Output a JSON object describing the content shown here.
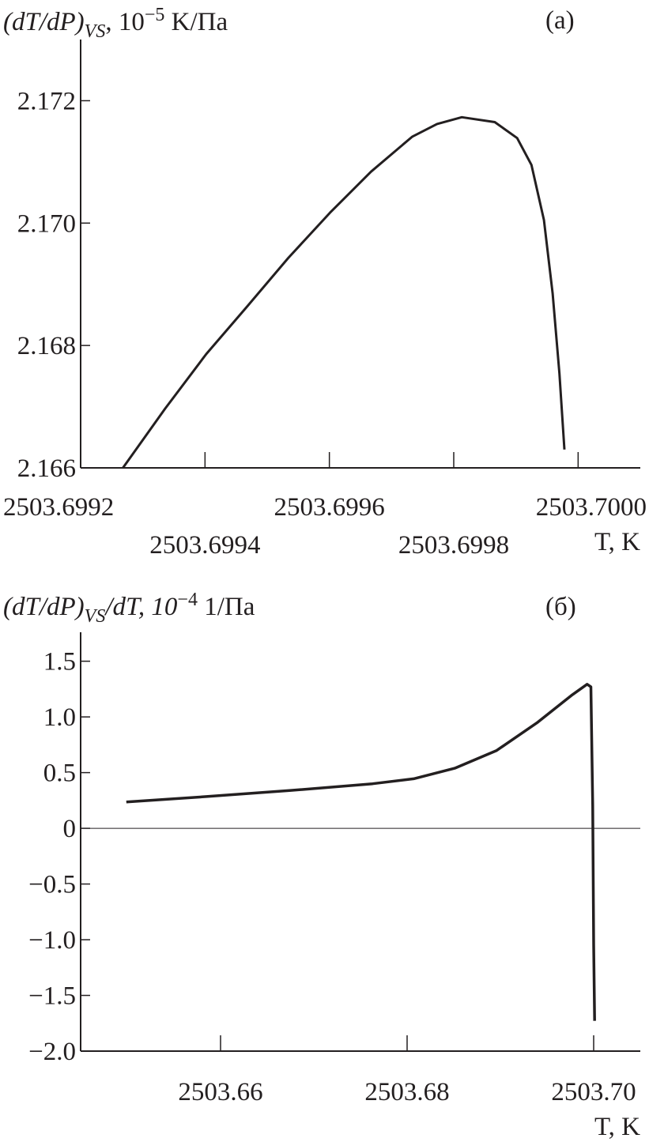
{
  "chart_data": [
    {
      "type": "line",
      "panel_label": "(a)",
      "ylabel": "(dT/dP)VS, 10−5 K/Па",
      "ylabel_parts": {
        "main": "(dT/dP)",
        "sub": "VS",
        "rest": ", 10",
        "exp": "−5",
        "unit": " K/Па"
      },
      "xlabel": "T, K",
      "xlabel_parts": {
        "var": "T",
        "unit": ", K"
      },
      "xlim": [
        2503.6992,
        2503.7001
      ],
      "ylim": [
        2.166,
        2.173
      ],
      "xticks": [
        2503.6992,
        2503.6994,
        2503.6996,
        2503.6998,
        2503.7
      ],
      "xtick_labels": [
        "2503.6992",
        "2503.6994",
        "2503.6996",
        "2503.6998",
        "2503.7000"
      ],
      "yticks": [
        2.166,
        2.168,
        2.17,
        2.172
      ],
      "ytick_labels": [
        "2.166",
        "2.168",
        "2.170",
        "2.172"
      ],
      "grid": false,
      "line_color": "#231f20",
      "x": [
        2503.699268,
        2503.699336,
        2503.699402,
        2503.699468,
        2503.699534,
        2503.699601,
        2503.699667,
        2503.699733,
        2503.699773,
        2503.699813,
        2503.699866,
        2503.699902,
        2503.699925,
        2503.699945,
        2503.699959,
        2503.69997,
        2503.699978
      ],
      "y": [
        2.166,
        2.16697,
        2.16786,
        2.16864,
        2.16943,
        2.17017,
        2.17084,
        2.17141,
        2.17162,
        2.17173,
        2.17165,
        2.17139,
        2.17095,
        2.17005,
        2.16885,
        2.16754,
        2.1663
      ]
    },
    {
      "type": "line",
      "panel_label": "(б)",
      "ylabel": "(dT/dP)VS/dT, 10−4 1/Па",
      "ylabel_parts": {
        "main": "(dT/dP)",
        "sub": "VS",
        "rest": "/dT, 10",
        "exp": "−4",
        "unit": " 1/Па"
      },
      "xlabel": "T, K",
      "xlabel_parts": {
        "var": "T",
        "unit": ", K"
      },
      "xlim": [
        2503.645,
        2503.705
      ],
      "ylim": [
        -2.0,
        1.76
      ],
      "xticks": [
        2503.66,
        2503.68,
        2503.7
      ],
      "xtick_labels": [
        "2503.66",
        "2503.68",
        "2503.70"
      ],
      "yticks": [
        -2.0,
        -1.5,
        -1.0,
        -0.5,
        0,
        0.5,
        1.0,
        1.5
      ],
      "ytick_labels": [
        "−2.0",
        "−1.5",
        "−1.0",
        "−0.5",
        "0",
        "0.5",
        "1.0",
        "1.5"
      ],
      "zero_line": true,
      "grid": false,
      "line_color": "#231f20",
      "x": [
        2503.6499,
        2503.6585,
        2503.6674,
        2503.6763,
        2503.6807,
        2503.6851,
        2503.6896,
        2503.694,
        2503.6976,
        2503.6993,
        2503.6997,
        2503.6999,
        2503.7,
        2503.7001
      ],
      "y": [
        0.237,
        0.285,
        0.339,
        0.4,
        0.445,
        0.539,
        0.699,
        0.952,
        1.192,
        1.293,
        1.27,
        0.205,
        -1.048,
        -1.728
      ]
    }
  ]
}
